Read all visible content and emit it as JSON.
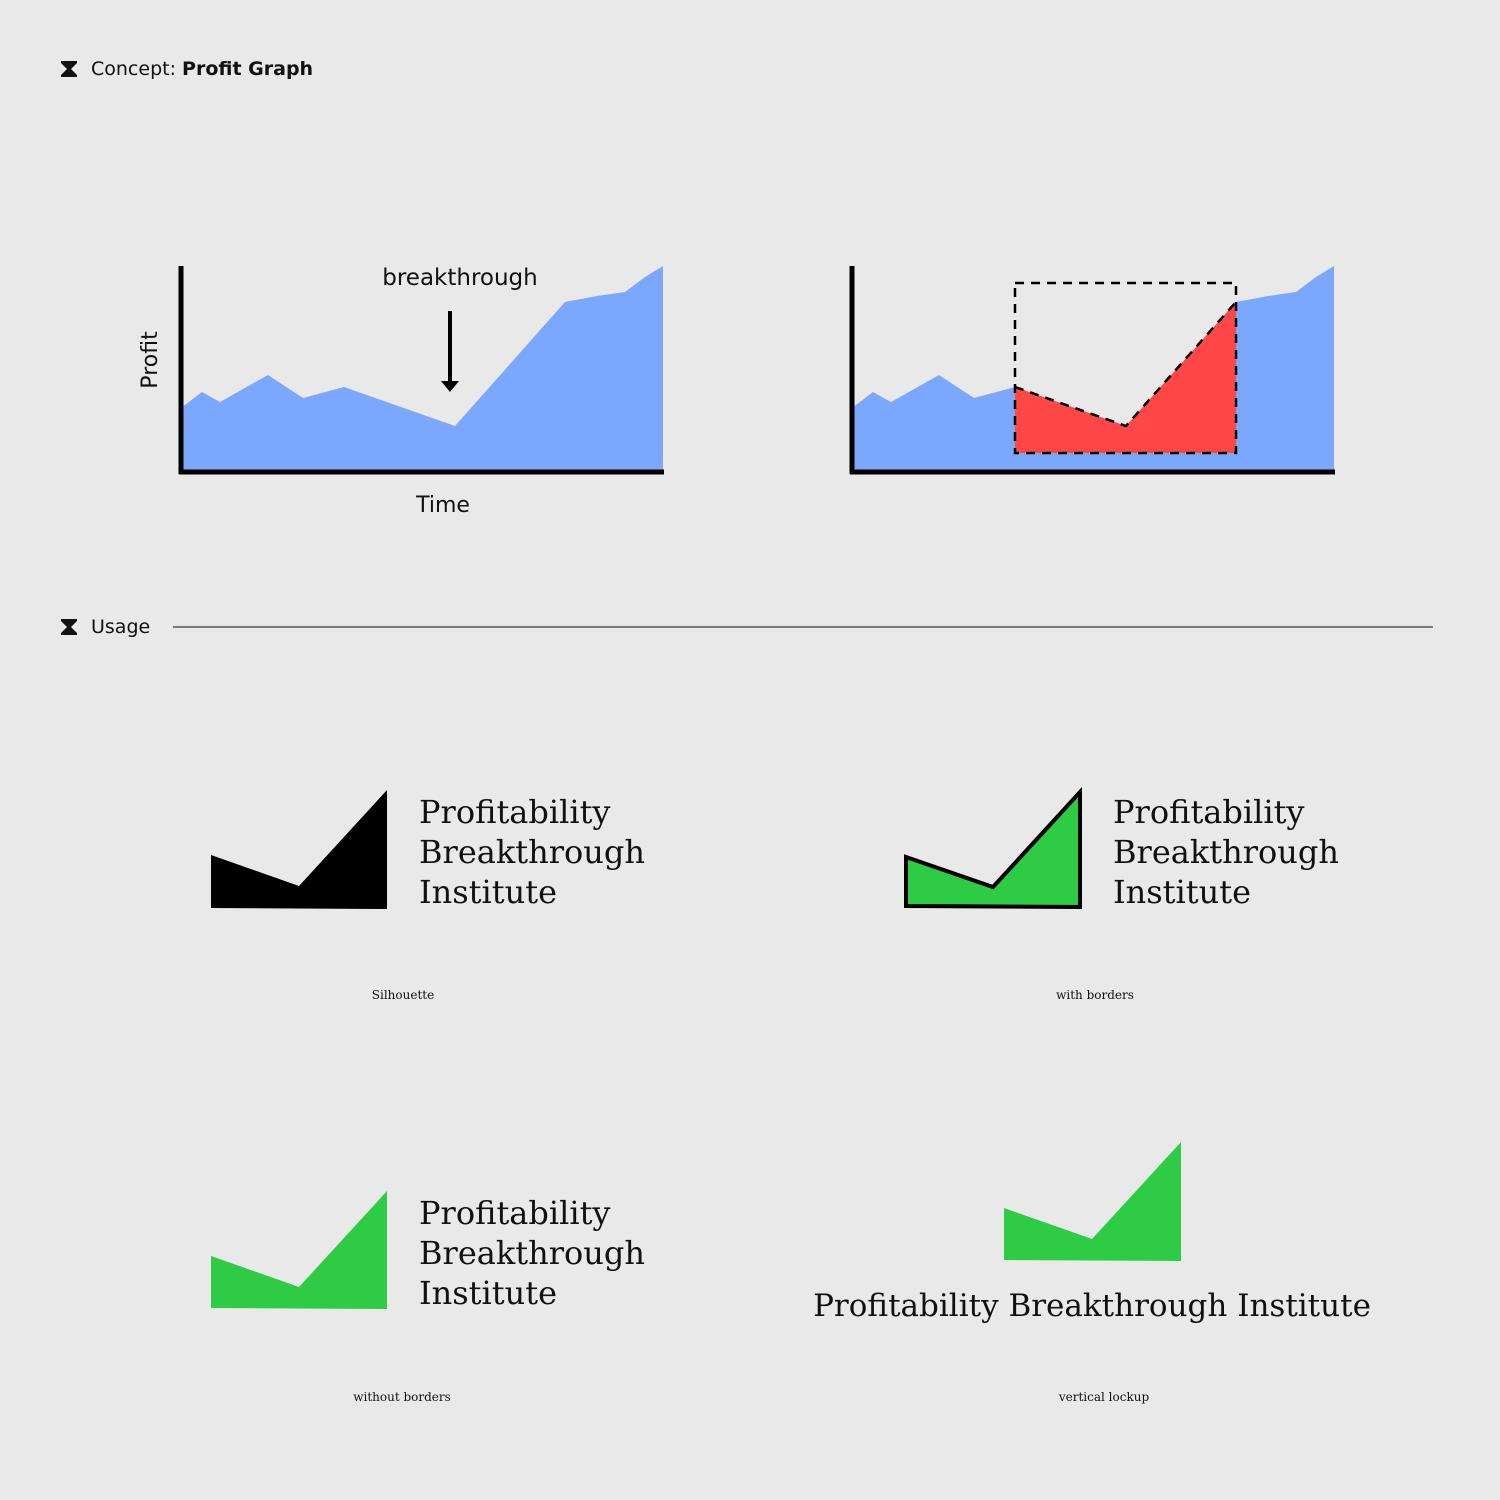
{
  "concept_header": {
    "prefix": "Concept: ",
    "title": "Profit Graph",
    "icon": "hourglass-icon"
  },
  "usage_header": {
    "title": "Usage",
    "icon": "hourglass-icon"
  },
  "graph": {
    "annotation": "breakthrough",
    "x_label": "Time",
    "y_label": "Profit",
    "fill_color": "#7ba7ff",
    "highlight_color": "#ff4747"
  },
  "brand": {
    "line1": "Profitability",
    "line2": "Breakthrough",
    "line3": "Institute",
    "full_name": "Profitability Breakthrough Institute",
    "green": "#2ecc45",
    "black": "#000000"
  },
  "variants": [
    {
      "caption": "Silhouette"
    },
    {
      "caption": "with borders"
    },
    {
      "caption": "without borders"
    },
    {
      "caption": "vertical lockup"
    }
  ]
}
